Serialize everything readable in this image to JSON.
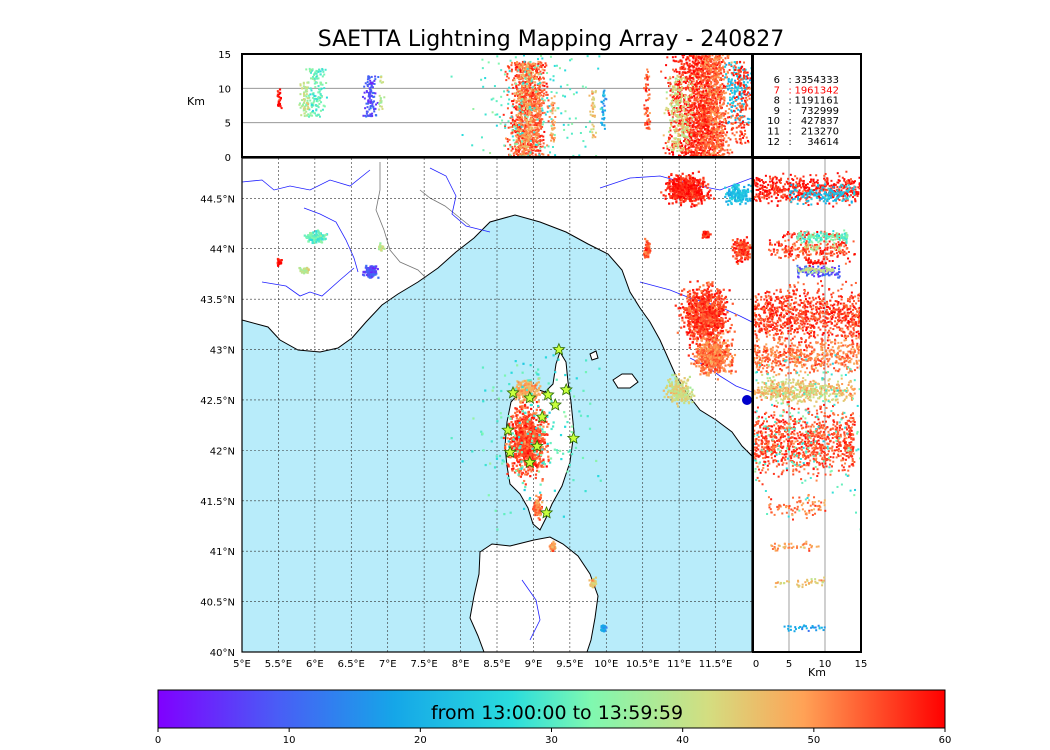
{
  "chart_data": {
    "type": "scatter",
    "title": "SAETTA Lightning Mapping Array - 240827",
    "map": {
      "lon_range": [
        5.0,
        12.0
      ],
      "lat_range": [
        40.0,
        44.9
      ],
      "lon_ticks": [
        "5°E",
        "5.5°E",
        "6°E",
        "6.5°E",
        "7°E",
        "7.5°E",
        "8°E",
        "8.5°E",
        "9°E",
        "9.5°E",
        "10°E",
        "10.5°E",
        "11°E",
        "11.5°E"
      ],
      "lat_ticks": [
        "40°N",
        "40.5°N",
        "41°N",
        "41.5°N",
        "42°N",
        "42.5°N",
        "43°N",
        "43.5°N",
        "44°N",
        "44.5°N"
      ],
      "grid": true,
      "sea_color": "#b8ecfa"
    },
    "altitude_panel": {
      "ylabel": "Km",
      "ylim": [
        0,
        15
      ],
      "yticks": [
        "0",
        "5",
        "10",
        "15"
      ],
      "gridlines_km": [
        5,
        10
      ]
    },
    "side_panel": {
      "xlabel": "Km",
      "xlim": [
        0,
        15
      ],
      "xticks": [
        "0",
        "5",
        "10",
        "15"
      ]
    },
    "station_counts": [
      {
        "stations": "6",
        "count": "3354333",
        "color": "#000000"
      },
      {
        "stations": "7",
        "count": "1961342",
        "color": "#ff0000"
      },
      {
        "stations": "8",
        "count": "1191161",
        "color": "#000000"
      },
      {
        "stations": "9",
        "count": "732999",
        "color": "#000000"
      },
      {
        "stations": "10",
        "count": "427837",
        "color": "#000000"
      },
      {
        "stations": "11",
        "count": "213270",
        "color": "#000000"
      },
      {
        "stations": "12",
        "count": "34614",
        "color": "#000000"
      }
    ],
    "sensors_lonlat": [
      [
        9.35,
        43.0
      ],
      [
        8.72,
        42.57
      ],
      [
        9.45,
        42.6
      ],
      [
        9.3,
        42.45
      ],
      [
        9.12,
        42.33
      ],
      [
        8.65,
        42.2
      ],
      [
        9.55,
        42.12
      ],
      [
        8.68,
        41.98
      ],
      [
        9.05,
        42.04
      ],
      [
        8.95,
        41.88
      ],
      [
        9.18,
        41.38
      ],
      [
        8.95,
        42.52
      ],
      [
        9.2,
        42.55
      ]
    ],
    "clusters": [
      {
        "lon": 8.9,
        "lat": 42.1,
        "r_lon": 0.35,
        "r_lat": 0.45,
        "alt_km": [
          0,
          14
        ],
        "minute": 55,
        "n": 900
      },
      {
        "lon": 8.9,
        "lat": 42.6,
        "r_lon": 0.25,
        "r_lat": 0.15,
        "alt_km": [
          0,
          14
        ],
        "minute": 48,
        "n": 250
      },
      {
        "lon": 9.05,
        "lat": 41.45,
        "r_lon": 0.08,
        "r_lat": 0.15,
        "alt_km": [
          2,
          10
        ],
        "minute": 52,
        "n": 80
      },
      {
        "lon": 9.25,
        "lat": 41.05,
        "r_lon": 0.06,
        "r_lat": 0.06,
        "alt_km": [
          2,
          9
        ],
        "minute": 50,
        "n": 40
      },
      {
        "lon": 9.8,
        "lat": 40.7,
        "r_lon": 0.06,
        "r_lat": 0.06,
        "alt_km": [
          3,
          10
        ],
        "minute": 45,
        "n": 40
      },
      {
        "lon": 9.95,
        "lat": 40.25,
        "r_lon": 0.05,
        "r_lat": 0.05,
        "alt_km": [
          4,
          10
        ],
        "minute": 18,
        "n": 30
      },
      {
        "lon": 11.35,
        "lat": 43.35,
        "r_lon": 0.45,
        "r_lat": 0.4,
        "alt_km": [
          0,
          15
        ],
        "minute": 56,
        "n": 900
      },
      {
        "lon": 11.45,
        "lat": 42.95,
        "r_lon": 0.35,
        "r_lat": 0.25,
        "alt_km": [
          0,
          15
        ],
        "minute": 52,
        "n": 500
      },
      {
        "lon": 11.1,
        "lat": 44.6,
        "r_lon": 0.4,
        "r_lat": 0.2,
        "alt_km": [
          0,
          15
        ],
        "minute": 58,
        "n": 500
      },
      {
        "lon": 11.8,
        "lat": 44.55,
        "r_lon": 0.25,
        "r_lat": 0.15,
        "alt_km": [
          5,
          14
        ],
        "minute": 22,
        "n": 150
      },
      {
        "lon": 11.85,
        "lat": 44.0,
        "r_lon": 0.15,
        "r_lat": 0.15,
        "alt_km": [
          2,
          14
        ],
        "minute": 56,
        "n": 150
      },
      {
        "lon": 11.0,
        "lat": 42.6,
        "r_lon": 0.25,
        "r_lat": 0.2,
        "alt_km": [
          1,
          12
        ],
        "minute": 42,
        "n": 220
      },
      {
        "lon": 10.55,
        "lat": 44.0,
        "r_lon": 0.06,
        "r_lat": 0.12,
        "alt_km": [
          4,
          13
        ],
        "minute": 55,
        "n": 60
      },
      {
        "lon": 11.35,
        "lat": 44.15,
        "r_lon": 0.08,
        "r_lat": 0.05,
        "alt_km": [
          4,
          12
        ],
        "minute": 58,
        "n": 50
      },
      {
        "lon": 6.0,
        "lat": 44.12,
        "r_lon": 0.2,
        "r_lat": 0.08,
        "alt_km": [
          6,
          13
        ],
        "minute": 32,
        "n": 140
      },
      {
        "lon": 6.75,
        "lat": 43.78,
        "r_lon": 0.12,
        "r_lat": 0.1,
        "alt_km": [
          6,
          12
        ],
        "minute": 8,
        "n": 100
      },
      {
        "lon": 5.85,
        "lat": 43.8,
        "r_lon": 0.1,
        "r_lat": 0.04,
        "alt_km": [
          6,
          11
        ],
        "minute": 40,
        "n": 60
      },
      {
        "lon": 5.5,
        "lat": 43.88,
        "r_lon": 0.04,
        "r_lat": 0.05,
        "alt_km": [
          7,
          10
        ],
        "minute": 58,
        "n": 30
      },
      {
        "lon": 6.9,
        "lat": 44.02,
        "r_lon": 0.05,
        "r_lat": 0.05,
        "alt_km": [
          7,
          12
        ],
        "minute": 40,
        "n": 20
      },
      {
        "lon": 9.0,
        "lat": 42.2,
        "r_lon": 1.3,
        "r_lat": 1.2,
        "alt_km": [
          0,
          15
        ],
        "minute": 30,
        "n": 180
      }
    ]
  },
  "colorbar": {
    "caption": "from 13:00:00 to 13:59:59",
    "ticks": [
      "0",
      "10",
      "20",
      "30",
      "40",
      "50",
      "60"
    ],
    "range": [
      0,
      60
    ]
  }
}
